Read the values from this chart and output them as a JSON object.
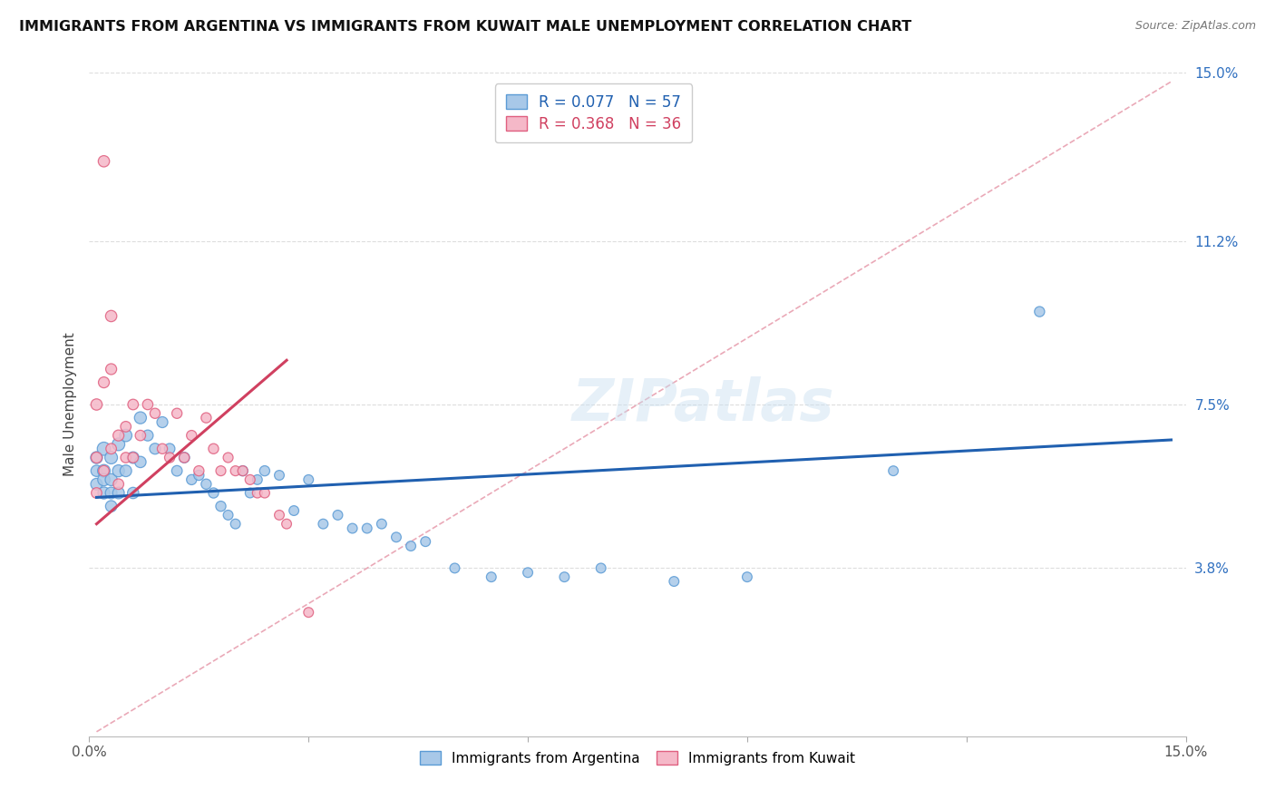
{
  "title": "IMMIGRANTS FROM ARGENTINA VS IMMIGRANTS FROM KUWAIT MALE UNEMPLOYMENT CORRELATION CHART",
  "source": "Source: ZipAtlas.com",
  "ylabel": "Male Unemployment",
  "xlim": [
    0.0,
    0.15
  ],
  "ylim": [
    0.0,
    0.15
  ],
  "yticks_right": [
    0.038,
    0.075,
    0.112,
    0.15
  ],
  "yticklabels_right": [
    "3.8%",
    "7.5%",
    "11.2%",
    "15.0%"
  ],
  "series1_label": "Immigrants from Argentina",
  "series2_label": "Immigrants from Kuwait",
  "series1_color": "#a8c8e8",
  "series2_color": "#f5b8c8",
  "series1_edge": "#5b9bd5",
  "series2_edge": "#e06080",
  "trend1_color": "#2060b0",
  "trend2_color": "#d04060",
  "diag_color": "#e8a0b0",
  "R1": 0.077,
  "N1": 57,
  "R2": 0.368,
  "N2": 36,
  "watermark": "ZIPatlas",
  "argentina_x": [
    0.001,
    0.001,
    0.001,
    0.002,
    0.002,
    0.002,
    0.002,
    0.003,
    0.003,
    0.003,
    0.003,
    0.004,
    0.004,
    0.004,
    0.005,
    0.005,
    0.006,
    0.006,
    0.007,
    0.007,
    0.008,
    0.009,
    0.01,
    0.011,
    0.012,
    0.013,
    0.014,
    0.015,
    0.016,
    0.017,
    0.018,
    0.019,
    0.02,
    0.021,
    0.022,
    0.023,
    0.024,
    0.026,
    0.028,
    0.03,
    0.032,
    0.034,
    0.036,
    0.038,
    0.04,
    0.042,
    0.044,
    0.046,
    0.05,
    0.055,
    0.06,
    0.065,
    0.07,
    0.08,
    0.09,
    0.11,
    0.13
  ],
  "argentina_y": [
    0.063,
    0.06,
    0.057,
    0.065,
    0.06,
    0.055,
    0.058,
    0.063,
    0.058,
    0.055,
    0.052,
    0.066,
    0.06,
    0.055,
    0.068,
    0.06,
    0.063,
    0.055,
    0.072,
    0.062,
    0.068,
    0.065,
    0.071,
    0.065,
    0.06,
    0.063,
    0.058,
    0.059,
    0.057,
    0.055,
    0.052,
    0.05,
    0.048,
    0.06,
    0.055,
    0.058,
    0.06,
    0.059,
    0.051,
    0.058,
    0.048,
    0.05,
    0.047,
    0.047,
    0.048,
    0.045,
    0.043,
    0.044,
    0.038,
    0.036,
    0.037,
    0.036,
    0.038,
    0.035,
    0.036,
    0.06,
    0.096
  ],
  "argentina_sizes": [
    90,
    80,
    85,
    110,
    100,
    90,
    95,
    100,
    90,
    85,
    80,
    100,
    90,
    85,
    95,
    85,
    85,
    80,
    90,
    80,
    75,
    75,
    75,
    70,
    70,
    70,
    65,
    65,
    65,
    65,
    65,
    60,
    60,
    65,
    60,
    60,
    65,
    60,
    60,
    60,
    60,
    60,
    60,
    60,
    60,
    60,
    60,
    60,
    60,
    60,
    60,
    60,
    60,
    60,
    60,
    60,
    65
  ],
  "kuwait_x": [
    0.001,
    0.001,
    0.001,
    0.002,
    0.002,
    0.002,
    0.003,
    0.003,
    0.003,
    0.004,
    0.004,
    0.005,
    0.005,
    0.006,
    0.006,
    0.007,
    0.008,
    0.009,
    0.01,
    0.011,
    0.012,
    0.013,
    0.014,
    0.015,
    0.016,
    0.017,
    0.018,
    0.019,
    0.02,
    0.021,
    0.022,
    0.023,
    0.024,
    0.026,
    0.027,
    0.03
  ],
  "kuwait_y": [
    0.075,
    0.063,
    0.055,
    0.13,
    0.08,
    0.06,
    0.095,
    0.083,
    0.065,
    0.068,
    0.057,
    0.07,
    0.063,
    0.075,
    0.063,
    0.068,
    0.075,
    0.073,
    0.065,
    0.063,
    0.073,
    0.063,
    0.068,
    0.06,
    0.072,
    0.065,
    0.06,
    0.063,
    0.06,
    0.06,
    0.058,
    0.055,
    0.055,
    0.05,
    0.048,
    0.028
  ],
  "kuwait_sizes": [
    80,
    75,
    70,
    80,
    75,
    70,
    80,
    75,
    70,
    75,
    70,
    70,
    68,
    70,
    68,
    68,
    68,
    65,
    65,
    65,
    65,
    65,
    65,
    65,
    65,
    65,
    62,
    62,
    62,
    62,
    62,
    62,
    62,
    60,
    60,
    60
  ],
  "trend1_x": [
    0.001,
    0.148
  ],
  "trend1_y_start": 0.054,
  "trend1_y_end": 0.067,
  "trend2_x": [
    0.001,
    0.027
  ],
  "trend2_y_start": 0.048,
  "trend2_y_end": 0.085
}
